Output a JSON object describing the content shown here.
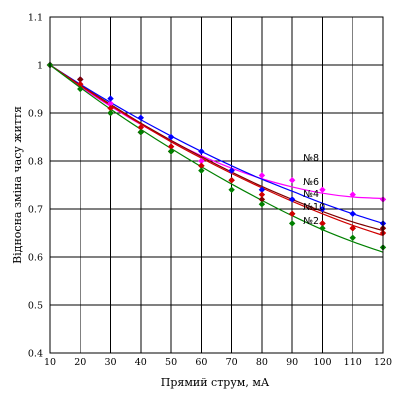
{
  "chart_data": {
    "type": "line",
    "title": "",
    "xlabel": "Прямий струм, мА",
    "ylabel": "Відносна зміна часу життя",
    "xlim": [
      10,
      120
    ],
    "ylim": [
      0.4,
      1.1
    ],
    "x_ticks": [
      "10",
      "20",
      "30",
      "40",
      "50",
      "60",
      "70",
      "80",
      "90",
      "100",
      "110",
      "120"
    ],
    "y_ticks": [
      "0.4",
      "0.5",
      "0.6",
      "0.7",
      "0.8",
      "0.9",
      "1",
      "1.1"
    ],
    "grid": true,
    "legend": "inline labels at x = 90",
    "x": [
      10,
      20,
      30,
      40,
      50,
      60,
      70,
      80,
      90,
      100,
      110,
      120
    ],
    "series": [
      {
        "name": "№8",
        "color": "#ff00ff",
        "values": [
          1.0,
          0.96,
          0.92,
          0.86,
          0.83,
          0.8,
          0.78,
          0.77,
          0.76,
          0.74,
          0.73,
          0.72
        ],
        "fit": [
          1.0,
          0.955,
          0.914,
          0.876,
          0.842,
          0.811,
          0.785,
          0.763,
          0.746,
          0.733,
          0.725,
          0.722
        ]
      },
      {
        "name": "№6",
        "color": "#0000ff",
        "values": [
          1.0,
          0.97,
          0.93,
          0.89,
          0.85,
          0.82,
          0.78,
          0.74,
          0.72,
          0.7,
          0.69,
          0.67
        ],
        "fit": [
          1.0,
          0.96,
          0.922,
          0.886,
          0.852,
          0.82,
          0.79,
          0.762,
          0.737,
          0.712,
          0.69,
          0.67
        ]
      },
      {
        "name": "№4",
        "color": "#800000",
        "values": [
          1.0,
          0.97,
          0.9,
          0.86,
          0.82,
          0.79,
          0.76,
          0.72,
          0.69,
          0.67,
          0.66,
          0.66
        ],
        "fit": [
          1.0,
          0.958,
          0.918,
          0.879,
          0.843,
          0.809,
          0.777,
          0.747,
          0.72,
          0.695,
          0.673,
          0.655
        ]
      },
      {
        "name": "№10",
        "color": "#d00000",
        "values": [
          1.0,
          0.96,
          0.91,
          0.87,
          0.83,
          0.79,
          0.76,
          0.73,
          0.69,
          0.67,
          0.66,
          0.65
        ],
        "fit": [
          1.0,
          0.957,
          0.916,
          0.877,
          0.84,
          0.806,
          0.774,
          0.744,
          0.716,
          0.69,
          0.666,
          0.645
        ]
      },
      {
        "name": "№2",
        "color": "#008000",
        "values": [
          1.0,
          0.95,
          0.9,
          0.86,
          0.82,
          0.78,
          0.74,
          0.71,
          0.67,
          0.66,
          0.64,
          0.62
        ],
        "fit": [
          1.0,
          0.953,
          0.908,
          0.866,
          0.826,
          0.788,
          0.752,
          0.718,
          0.686,
          0.657,
          0.632,
          0.61
        ]
      }
    ]
  }
}
